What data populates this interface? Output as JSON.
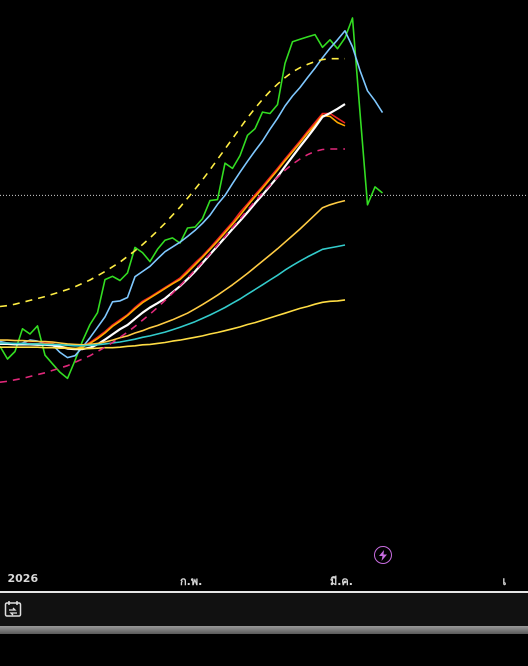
{
  "chart_data": {
    "type": "line",
    "grid": false,
    "legend": "none",
    "x_range": [
      0,
      51
    ],
    "y_range": [
      0,
      100
    ],
    "x_ticks": [
      {
        "x": 1,
        "label": "2026"
      },
      {
        "x": 24,
        "label": "ก.พ."
      },
      {
        "x": 44,
        "label": "มี.ค."
      },
      {
        "x": 67,
        "label": "เ"
      }
    ],
    "reference_line": {
      "y": 62.5,
      "color": "#cfcfcf",
      "style": "dotted"
    },
    "series": [
      {
        "color": "#33dd22",
        "style": "solid",
        "values": [
          30.6,
          27.9,
          29.5,
          34.3,
          33.2,
          34.9,
          28.7,
          26.9,
          25.1,
          23.8,
          27.6,
          31.7,
          35.2,
          37.7,
          44.7,
          45.4,
          44.5,
          46.1,
          51.5,
          50.4,
          48.5,
          51.1,
          53.0,
          53.5,
          52.4,
          55.6,
          55.8,
          57.6,
          61.4,
          61.6,
          69.3,
          68.2,
          70.9,
          75.2,
          76.6,
          80.1,
          79.8,
          81.7,
          90.4,
          95.0,
          95.5,
          96.0,
          96.5,
          93.8,
          95.4,
          93.5,
          95.8,
          100.0,
          80.0,
          60.5,
          64.3,
          63.0
        ]
      },
      {
        "color": "#7fc8ff",
        "style": "solid",
        "values": [
          31.6,
          31.3,
          31.1,
          31.3,
          31.9,
          31.7,
          31.2,
          30.9,
          29.3,
          28.2,
          28.6,
          30.4,
          32.4,
          34.6,
          36.8,
          40.0,
          40.2,
          40.9,
          45.3,
          46.4,
          47.5,
          49.1,
          50.6,
          51.6,
          52.6,
          53.8,
          55.1,
          56.6,
          58.3,
          60.6,
          62.5,
          65.0,
          67.4,
          69.7,
          71.9,
          74.0,
          76.5,
          78.8,
          81.4,
          83.5,
          85.3,
          87.4,
          89.4,
          91.6,
          93.6,
          95.4,
          97.3,
          93.9,
          88.9,
          84.6,
          82.5,
          80.0
        ]
      },
      {
        "color": "#ee2222",
        "style": "solid",
        "values": [
          31.3,
          31.3,
          31.2,
          31.2,
          31.2,
          31.1,
          31.3,
          31.2,
          30.5,
          30.2,
          30.0,
          30.5,
          31.4,
          32.5,
          33.7,
          35.1,
          36.2,
          37.3,
          38.8,
          40.1,
          41.0,
          42.0,
          43.0,
          44.0,
          45.0,
          46.6,
          48.2,
          49.7,
          51.4,
          53.2,
          55.0,
          56.8,
          58.9,
          60.7,
          62.6,
          64.4,
          66.3,
          68.2,
          70.2,
          72.1,
          74.0,
          76.0,
          77.9,
          79.8,
          79.8,
          78.8,
          77.8
        ]
      },
      {
        "color": "#ffaa00",
        "style": "solid",
        "values": [
          31.2,
          31.2,
          31.2,
          31.1,
          31.1,
          31.1,
          31.1,
          31.1,
          30.6,
          30.3,
          30.1,
          30.4,
          31.2,
          32.2,
          33.4,
          34.8,
          35.9,
          37.1,
          38.5,
          39.8,
          40.8,
          41.8,
          42.8,
          43.8,
          44.7,
          46.2,
          47.8,
          49.4,
          51.1,
          52.8,
          54.6,
          56.4,
          58.3,
          60.3,
          62.2,
          64.0,
          65.9,
          67.8,
          69.8,
          71.7,
          73.6,
          75.6,
          77.4,
          79.4,
          79.2,
          77.9,
          77.2
        ]
      },
      {
        "color": "#ffffff",
        "style": "solid",
        "values": [
          31.1,
          31.1,
          31.0,
          31.0,
          31.0,
          30.9,
          30.9,
          30.8,
          30.5,
          30.1,
          30.0,
          30.0,
          30.3,
          31.0,
          32.0,
          33.1,
          34.2,
          35.1,
          36.4,
          37.7,
          38.8,
          39.7,
          40.7,
          42.0,
          43.3,
          44.8,
          46.4,
          48.2,
          50.0,
          51.8,
          53.6,
          55.4,
          57.1,
          58.9,
          60.8,
          62.6,
          64.5,
          66.4,
          68.6,
          70.7,
          72.8,
          74.8,
          76.9,
          79.1,
          79.9,
          80.8,
          81.8
        ]
      },
      {
        "color": "#ffcc44",
        "style": "solid",
        "values": [
          31.9,
          31.9,
          31.8,
          31.8,
          31.7,
          31.6,
          31.6,
          31.5,
          31.3,
          31.1,
          31.0,
          30.9,
          31.0,
          31.2,
          31.5,
          31.9,
          32.4,
          32.8,
          33.4,
          33.9,
          34.5,
          35.0,
          35.6,
          36.2,
          36.9,
          37.6,
          38.5,
          39.4,
          40.4,
          41.4,
          42.5,
          43.6,
          44.8,
          46.0,
          47.3,
          48.6,
          49.9,
          51.2,
          52.6,
          54.0,
          55.4,
          56.9,
          58.4,
          59.9,
          60.5,
          61.0,
          61.4
        ]
      },
      {
        "color": "#33cccc",
        "style": "solid",
        "values": [
          31.3,
          31.3,
          31.2,
          31.2,
          31.1,
          31.1,
          31.0,
          31.0,
          30.9,
          30.8,
          30.7,
          30.7,
          30.8,
          30.9,
          31.1,
          31.3,
          31.5,
          31.8,
          32.1,
          32.5,
          32.8,
          33.2,
          33.6,
          34.1,
          34.6,
          35.2,
          35.8,
          36.5,
          37.2,
          38.0,
          38.8,
          39.7,
          40.6,
          41.6,
          42.6,
          43.6,
          44.6,
          45.6,
          46.7,
          47.7,
          48.6,
          49.5,
          50.3,
          51.1,
          51.4,
          51.7,
          52.0
        ]
      },
      {
        "color": "#ffdd44",
        "style": "solid",
        "values": [
          30.4,
          30.4,
          30.4,
          30.4,
          30.4,
          30.4,
          30.3,
          30.3,
          30.2,
          30.2,
          30.1,
          30.1,
          30.1,
          30.2,
          30.3,
          30.3,
          30.4,
          30.6,
          30.7,
          30.9,
          31.0,
          31.2,
          31.4,
          31.7,
          31.9,
          32.2,
          32.5,
          32.8,
          33.2,
          33.5,
          33.9,
          34.3,
          34.7,
          35.2,
          35.6,
          36.1,
          36.6,
          37.1,
          37.6,
          38.1,
          38.6,
          39.0,
          39.5,
          39.9,
          40.1,
          40.2,
          40.4
        ]
      },
      {
        "color": "#ffee44",
        "style": "dashed",
        "values": [
          39.0,
          39.2,
          39.5,
          39.9,
          40.3,
          40.7,
          41.1,
          41.6,
          42.1,
          42.6,
          43.2,
          43.9,
          44.6,
          45.5,
          46.4,
          47.4,
          48.4,
          49.6,
          50.8,
          52.1,
          53.5,
          55.0,
          56.6,
          58.3,
          60.0,
          61.9,
          63.8,
          65.8,
          67.9,
          70.1,
          72.3,
          74.5,
          76.7,
          78.9,
          80.9,
          82.8,
          84.5,
          86.0,
          87.4,
          88.6,
          89.5,
          90.2,
          90.8,
          91.2,
          91.4,
          91.4,
          91.4
        ]
      },
      {
        "color": "#e0287a",
        "style": "dashed",
        "values": [
          23.0,
          23.2,
          23.5,
          23.8,
          24.2,
          24.6,
          25.0,
          25.5,
          26.0,
          26.5,
          27.2,
          27.9,
          28.6,
          29.5,
          30.4,
          31.4,
          32.5,
          33.6,
          34.8,
          36.1,
          37.4,
          38.8,
          40.3,
          41.8,
          43.4,
          45.0,
          46.7,
          48.4,
          50.2,
          52.0,
          53.8,
          55.7,
          57.5,
          59.4,
          61.2,
          63.0,
          64.7,
          66.3,
          67.8,
          69.1,
          70.2,
          71.1,
          71.8,
          72.2,
          72.3,
          72.3,
          72.3
        ]
      }
    ]
  },
  "toolbar": {
    "icon": "calendar-sync-icon"
  },
  "flash_icon": "lightning-icon"
}
